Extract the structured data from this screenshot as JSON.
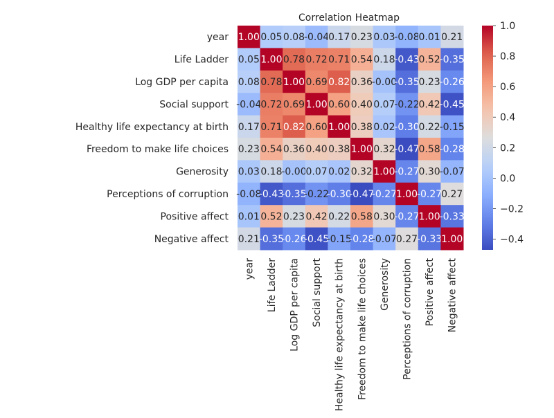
{
  "chart_data": {
    "type": "heatmap",
    "title": "Correlation Heatmap",
    "labels": [
      "year",
      "Life Ladder",
      "Log GDP per capita",
      "Social support",
      "Healthy life expectancy at birth",
      "Freedom to make life choices",
      "Generosity",
      "Perceptions of corruption",
      "Positive affect",
      "Negative affect"
    ],
    "display_values": [
      [
        "1.00",
        "0.05",
        "0.08",
        "-0.04",
        "0.17",
        "0.23",
        "0.03",
        "-0.08",
        "0.01",
        "0.21"
      ],
      [
        "0.05",
        "1.00",
        "0.78",
        "0.72",
        "0.71",
        "0.54",
        "0.18",
        "-0.43",
        "0.52",
        "-0.35"
      ],
      [
        "0.08",
        "0.78",
        "1.00",
        "0.69",
        "0.82",
        "0.36",
        "-0.00",
        "-0.35",
        "0.23",
        "-0.26"
      ],
      [
        "-0.04",
        "0.72",
        "0.69",
        "1.00",
        "0.60",
        "0.40",
        "0.07",
        "-0.22",
        "0.42",
        "-0.45"
      ],
      [
        "0.17",
        "0.71",
        "0.82",
        "0.60",
        "1.00",
        "0.38",
        "0.02",
        "-0.30",
        "0.22",
        "-0.15"
      ],
      [
        "0.23",
        "0.54",
        "0.36",
        "0.40",
        "0.38",
        "1.00",
        "0.32",
        "-0.47",
        "0.58",
        "-0.28"
      ],
      [
        "0.03",
        "0.18",
        "-0.00",
        "0.07",
        "0.02",
        "0.32",
        "1.00",
        "-0.27",
        "0.30",
        "-0.07"
      ],
      [
        "-0.08",
        "-0.43",
        "-0.35",
        "-0.22",
        "-0.30",
        "-0.47",
        "-0.27",
        "1.00",
        "-0.27",
        "0.27"
      ],
      [
        "0.01",
        "0.52",
        "0.23",
        "0.42",
        "0.22",
        "0.58",
        "0.30",
        "-0.27",
        "1.00",
        "-0.33"
      ],
      [
        "0.21",
        "-0.35",
        "-0.26",
        "-0.45",
        "-0.15",
        "-0.28",
        "-0.07",
        "0.27",
        "-0.33",
        "1.00"
      ]
    ],
    "colorbar": {
      "range": [
        -0.47,
        1.0
      ],
      "ticks": [
        "1.0",
        "0.8",
        "0.6",
        "0.4",
        "0.2",
        "0.0",
        "−0.2",
        "−0.4"
      ],
      "tick_values": [
        1.0,
        0.8,
        0.6,
        0.4,
        0.2,
        0.0,
        -0.2,
        -0.4
      ]
    },
    "colormap": "coolwarm"
  }
}
